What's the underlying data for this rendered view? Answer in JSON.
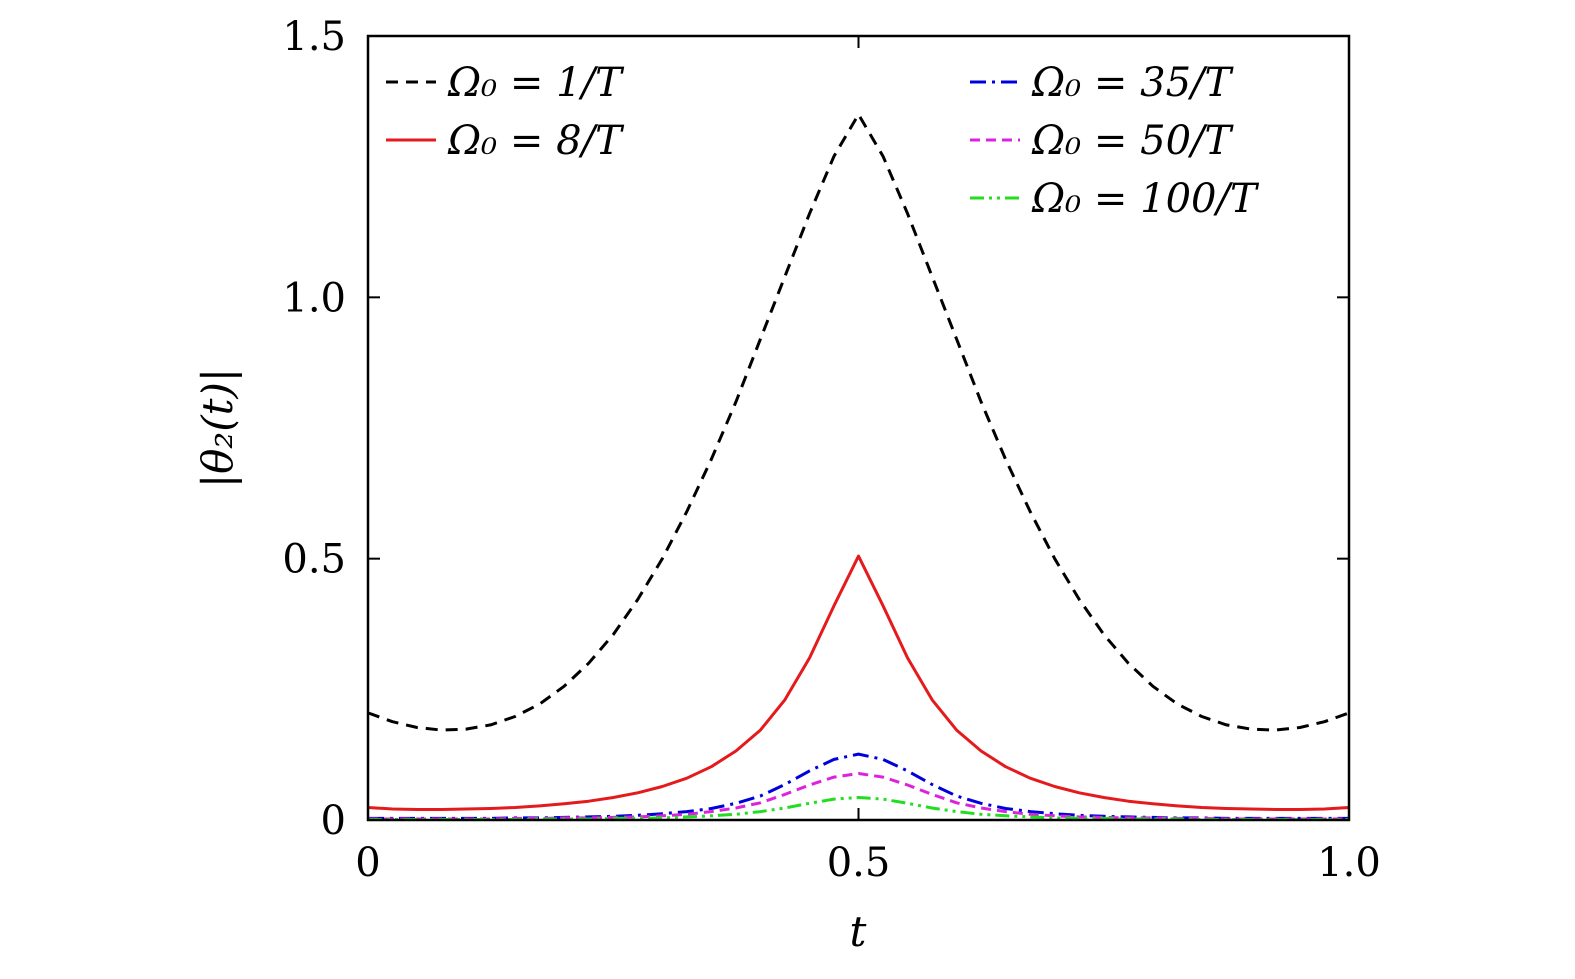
{
  "chart_data": {
    "type": "line",
    "xlabel": "t",
    "ylabel": "|θ₂(t)|",
    "xlim": [
      0,
      1.0
    ],
    "ylim": [
      0,
      1.5
    ],
    "xticks": [
      0,
      0.5,
      1.0
    ],
    "xtick_labels": [
      "0",
      "0.5",
      "1.0"
    ],
    "yticks": [
      0,
      0.5,
      1.0,
      1.5
    ],
    "ytick_labels": [
      "0",
      "0.5",
      "1.0",
      "1.5"
    ],
    "grid": false,
    "legend_position": "top (two columns)",
    "x": [
      0,
      0.025,
      0.05,
      0.075,
      0.1,
      0.125,
      0.15,
      0.175,
      0.2,
      0.225,
      0.25,
      0.275,
      0.3,
      0.325,
      0.35,
      0.375,
      0.4,
      0.425,
      0.45,
      0.475,
      0.5,
      0.525,
      0.55,
      0.575,
      0.6,
      0.625,
      0.65,
      0.675,
      0.7,
      0.725,
      0.75,
      0.775,
      0.8,
      0.825,
      0.85,
      0.875,
      0.9,
      0.925,
      0.95,
      0.975,
      1.0
    ],
    "series": [
      {
        "name": "Ω₀ = 1/T",
        "color": "#000000",
        "dash": "12,8",
        "values": [
          0.205,
          0.188,
          0.177,
          0.172,
          0.174,
          0.182,
          0.198,
          0.222,
          0.256,
          0.3,
          0.355,
          0.422,
          0.5,
          0.59,
          0.69,
          0.8,
          0.92,
          1.04,
          1.16,
          1.27,
          1.35,
          1.27,
          1.16,
          1.04,
          0.92,
          0.8,
          0.69,
          0.59,
          0.5,
          0.422,
          0.355,
          0.3,
          0.256,
          0.222,
          0.198,
          0.182,
          0.174,
          0.172,
          0.177,
          0.188,
          0.205
        ]
      },
      {
        "name": "Ω₀ = 8/T",
        "color": "#e41a1c",
        "dash": "",
        "values": [
          0.024,
          0.021,
          0.02,
          0.02,
          0.021,
          0.022,
          0.024,
          0.027,
          0.031,
          0.036,
          0.043,
          0.052,
          0.064,
          0.08,
          0.102,
          0.132,
          0.172,
          0.23,
          0.31,
          0.41,
          0.505,
          0.41,
          0.31,
          0.23,
          0.172,
          0.132,
          0.102,
          0.08,
          0.064,
          0.052,
          0.043,
          0.036,
          0.031,
          0.027,
          0.024,
          0.022,
          0.021,
          0.02,
          0.02,
          0.021,
          0.024
        ]
      },
      {
        "name": "Ω₀ = 35/T",
        "color": "#0000dd",
        "dash": "16,6,3,6",
        "values": [
          0.003,
          0.003,
          0.003,
          0.003,
          0.003,
          0.003,
          0.004,
          0.004,
          0.005,
          0.006,
          0.007,
          0.009,
          0.012,
          0.016,
          0.022,
          0.032,
          0.046,
          0.068,
          0.094,
          0.116,
          0.126,
          0.116,
          0.094,
          0.068,
          0.046,
          0.032,
          0.022,
          0.016,
          0.012,
          0.009,
          0.007,
          0.006,
          0.005,
          0.004,
          0.004,
          0.003,
          0.003,
          0.003,
          0.003,
          0.003,
          0.003
        ]
      },
      {
        "name": "Ω₀ = 50/T",
        "color": "#dd22dd",
        "dash": "10,6",
        "values": [
          0.002,
          0.002,
          0.002,
          0.002,
          0.002,
          0.002,
          0.003,
          0.003,
          0.004,
          0.004,
          0.005,
          0.006,
          0.008,
          0.011,
          0.016,
          0.023,
          0.033,
          0.049,
          0.067,
          0.082,
          0.089,
          0.082,
          0.067,
          0.049,
          0.033,
          0.023,
          0.016,
          0.011,
          0.008,
          0.006,
          0.005,
          0.004,
          0.004,
          0.003,
          0.003,
          0.002,
          0.002,
          0.002,
          0.002,
          0.002,
          0.002
        ]
      },
      {
        "name": "Ω₀ = 100/T",
        "color": "#22dd22",
        "dash": "14,5,3,5,3,5",
        "values": [
          0.001,
          0.001,
          0.001,
          0.001,
          0.001,
          0.001,
          0.001,
          0.002,
          0.002,
          0.002,
          0.003,
          0.003,
          0.004,
          0.006,
          0.008,
          0.011,
          0.016,
          0.023,
          0.032,
          0.04,
          0.043,
          0.04,
          0.032,
          0.023,
          0.016,
          0.011,
          0.008,
          0.006,
          0.004,
          0.003,
          0.003,
          0.002,
          0.002,
          0.002,
          0.001,
          0.001,
          0.001,
          0.001,
          0.001,
          0.001,
          0.001
        ]
      }
    ]
  }
}
